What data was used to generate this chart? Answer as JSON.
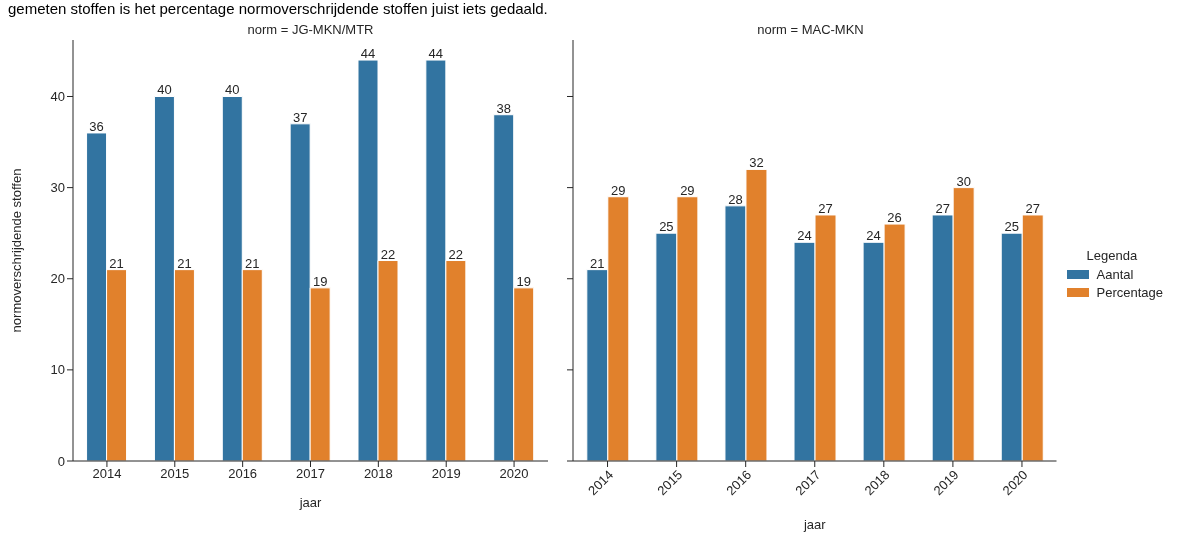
{
  "chart_data": [
    {
      "type": "bar",
      "title": "norm = JG-MKN/MTR",
      "xlabel": "jaar",
      "ylabel": "normoverschrijdende stoffen",
      "annotations": [
        "gemeten stoffen is het percentage normoverschrijdende stoffen juist iets gedaald."
      ],
      "categories": [
        "2014",
        "2015",
        "2016",
        "2017",
        "2018",
        "2019",
        "2020"
      ],
      "series": [
        {
          "color": "#3274a1",
          "values": [
            36,
            40,
            40,
            37,
            44,
            44,
            38
          ]
        },
        {
          "color": "#e1812c",
          "values": [
            21,
            21,
            21,
            19,
            22,
            22,
            19
          ]
        }
      ],
      "ylim": [
        0,
        46.2
      ],
      "yticks": [
        0,
        10,
        20,
        30,
        40
      ],
      "grid": false,
      "legend": false,
      "data_labels": true
    },
    {
      "type": "bar",
      "title": "norm = MAC-MKN",
      "xlabel": "jaar",
      "legend_title": "Legenda",
      "categories": [
        "2014",
        "2015",
        "2016",
        "2017",
        "2018",
        "2019",
        "2020"
      ],
      "series": [
        {
          "name": "Aantal",
          "color": "#3274a1",
          "values": [
            21,
            25,
            28,
            24,
            24,
            27,
            25
          ]
        },
        {
          "name": "Percentage",
          "color": "#e1812c",
          "values": [
            29,
            29,
            32,
            27,
            26,
            30,
            27
          ]
        }
      ],
      "ylim": [
        0,
        46.2
      ],
      "yticks": [
        0,
        10,
        20,
        30,
        40
      ],
      "grid": false,
      "legend": "right",
      "tick_labels": "x",
      "data_labels": true
    }
  ]
}
